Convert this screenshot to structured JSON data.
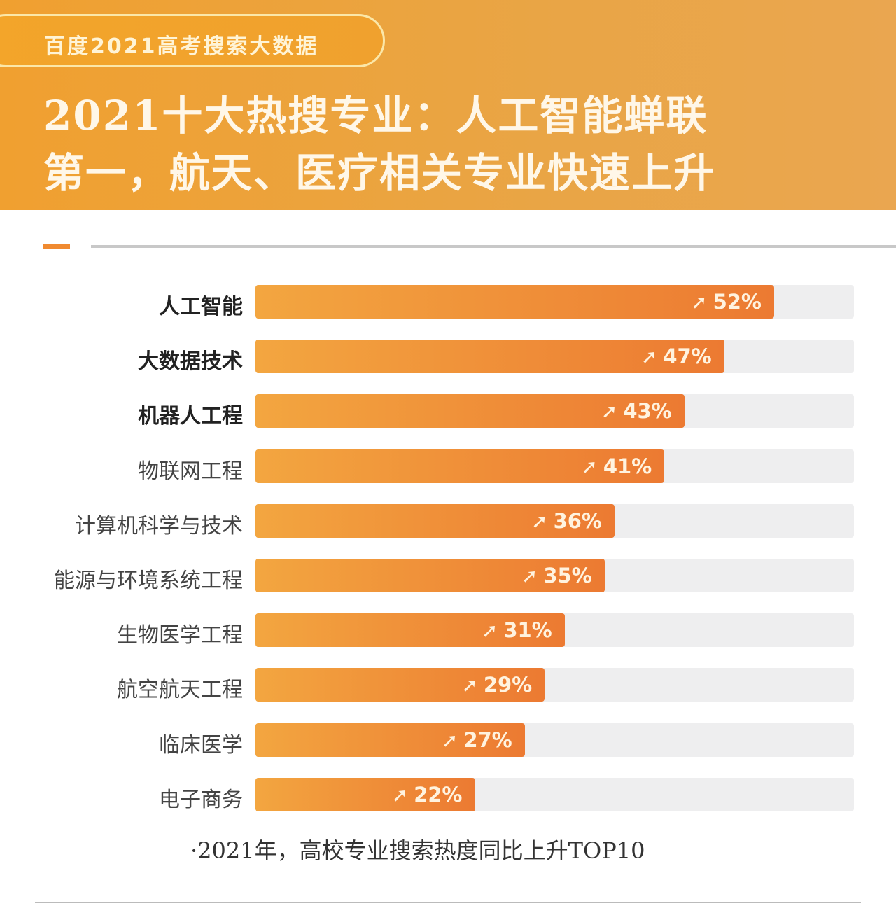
{
  "header": {
    "badge": "百度2021高考搜索大数据",
    "title_line1": "2021十大热搜专业：人工智能蝉联",
    "title_line2": "第一，航天、医疗相关专业快速上升"
  },
  "chart_data": {
    "type": "bar",
    "orientation": "horizontal",
    "categories": [
      "人工智能",
      "大数据技术",
      "机器人工程",
      "物联网工程",
      "计算机科学与技术",
      "能源与环境系统工程",
      "生物医学工程",
      "航空航天工程",
      "临床医学",
      "电子商务"
    ],
    "values": [
      52,
      47,
      43,
      41,
      36,
      35,
      31,
      29,
      27,
      22
    ],
    "value_labels": [
      "52%",
      "47%",
      "43%",
      "41%",
      "36%",
      "35%",
      "31%",
      "29%",
      "27%",
      "22%"
    ],
    "bold_categories": [
      "人工智能",
      "大数据技术",
      "机器人工程"
    ],
    "xlim": [
      0,
      60
    ],
    "unit": "%",
    "grid": false,
    "bar_color": "#ec7a32",
    "track_color": "#eeeeef",
    "value_icon": "trend-up-arrow-icon",
    "footnote": "·2021年，高校专业搜索热度同比上升TOP10"
  }
}
